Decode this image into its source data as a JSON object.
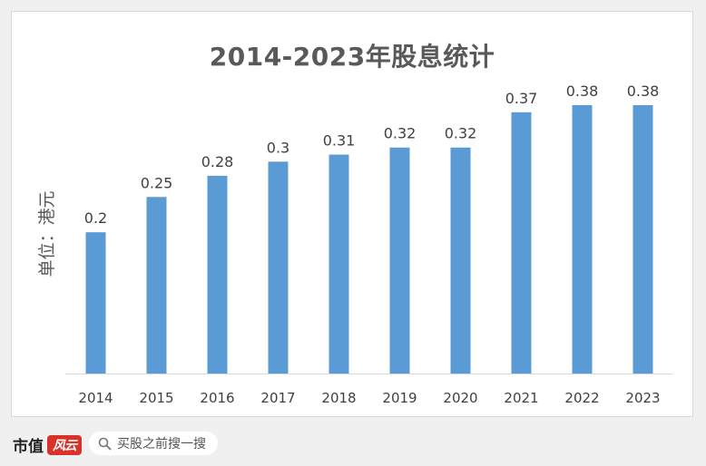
{
  "chart_data": {
    "type": "bar",
    "title": "2014-2023年股息统计",
    "ylabel": "单位：港元",
    "xlabel": "",
    "categories": [
      "2014",
      "2015",
      "2016",
      "2017",
      "2018",
      "2019",
      "2020",
      "2021",
      "2022",
      "2023"
    ],
    "values": [
      0.2,
      0.25,
      0.28,
      0.3,
      0.31,
      0.32,
      0.32,
      0.37,
      0.38,
      0.38
    ],
    "value_labels": [
      "0.2",
      "0.25",
      "0.28",
      "0.3",
      "0.31",
      "0.32",
      "0.32",
      "0.37",
      "0.38",
      "0.38"
    ],
    "ylim": [
      0,
      0.38
    ],
    "grid": false,
    "legend": "none",
    "bar_color": "#5b9bd5"
  },
  "footer": {
    "brand": "市值",
    "badge": "风云",
    "search_placeholder": "买股之前搜一搜"
  }
}
